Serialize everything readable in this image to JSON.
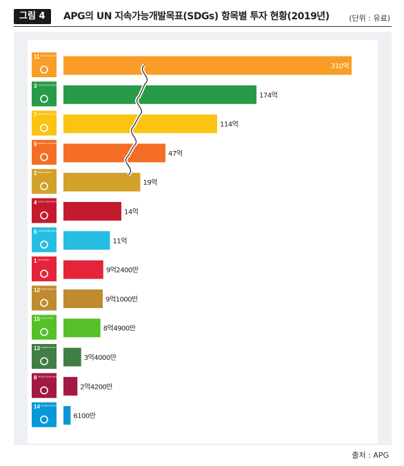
{
  "header": {
    "figure_label": "그림 4",
    "title": "APG의 UN 지속가능개발목표(SDGs) 항목별 투자 현황(2019년)",
    "unit": "(단위 : 유료)"
  },
  "source": "출처 : APG",
  "chart_data": {
    "type": "bar",
    "orientation": "horizontal",
    "axis_break": true,
    "categories": [
      {
        "goal": "11",
        "label": "SUSTAINABLE CITIES AND COMMUNITIES",
        "color": "#F99D26",
        "icon": "city-icon"
      },
      {
        "goal": "3",
        "label": "GOOD HEALTH AND WELL-BEING",
        "color": "#279B48",
        "icon": "heartbeat-icon"
      },
      {
        "goal": "7",
        "label": "AFFORDABLE AND CLEAN ENERGY",
        "color": "#FBC412",
        "icon": "sun-icon"
      },
      {
        "goal": "9",
        "label": "INDUSTRY, INNOVATION AND INFRASTRUCTURE",
        "color": "#F36E24",
        "icon": "cubes-icon"
      },
      {
        "goal": "2",
        "label": "ZERO HUNGER",
        "color": "#D3A029",
        "icon": "bowl-icon"
      },
      {
        "goal": "4",
        "label": "QUALITY EDUCATION",
        "color": "#C5192D",
        "icon": "book-icon"
      },
      {
        "goal": "6",
        "label": "CLEAN WATER AND SANITATION",
        "color": "#26BDE2",
        "icon": "water-drop-icon"
      },
      {
        "goal": "1",
        "label": "NO POVERTY",
        "color": "#E5243B",
        "icon": "family-icon"
      },
      {
        "goal": "12",
        "label": "RESPONSIBLE CONSUMPTION AND PRODUCTION",
        "color": "#BF8B2E",
        "icon": "infinity-icon"
      },
      {
        "goal": "15",
        "label": "LIFE ON LAND",
        "color": "#56C02B",
        "icon": "tree-icon"
      },
      {
        "goal": "13",
        "label": "CLIMATE ACTION",
        "color": "#3F7E44",
        "icon": "eye-globe-icon"
      },
      {
        "goal": "8",
        "label": "DECENT WORK AND ECONOMIC GROWTH",
        "color": "#A21942",
        "icon": "growth-chart-icon"
      },
      {
        "goal": "14",
        "label": "LIFE BELOW WATER",
        "color": "#0A97D9",
        "icon": "fish-icon"
      }
    ],
    "values": [
      31000000000,
      17400000000,
      11400000000,
      4700000000,
      1900000000,
      1400000000,
      1100000000,
      924000000,
      910000000,
      849000000,
      340000000,
      242000000,
      61000000
    ],
    "data_labels": [
      "310억",
      "174억",
      "114억",
      "47억",
      "19억",
      "14억",
      "11억",
      "9억2400만",
      "9억1000만",
      "8억4900만",
      "3억4000만",
      "2억4200만",
      "6100만"
    ]
  }
}
